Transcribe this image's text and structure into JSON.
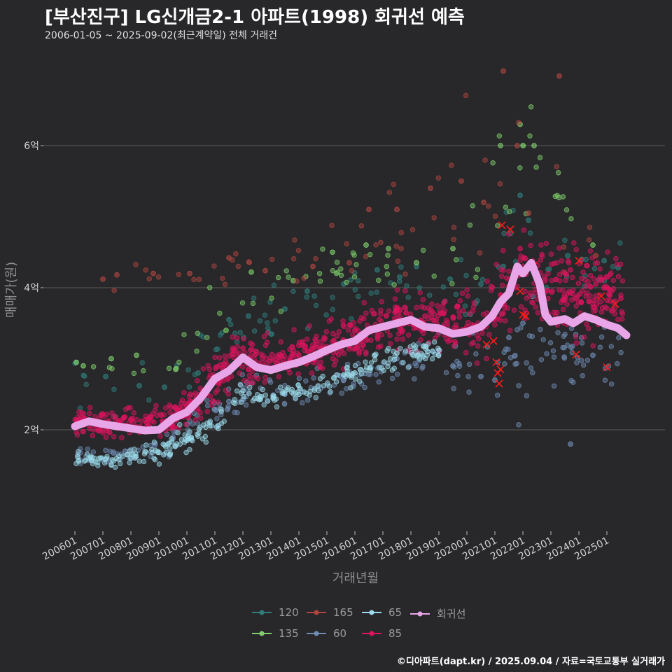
{
  "header": {
    "title": "[부산진구] LG신개금2-1 아파트(1998) 회귀선 예측",
    "subtitle": "2006-01-05 ~ 2025-09-02(최근계약일) 전체 거래건"
  },
  "caption": "©디아파트(dapt.kr) / 2025.09.04 / 자료=국토교통부 실거래가",
  "colors": {
    "background": "#28282b",
    "grid": "#5a5a5a",
    "s120": "#2e7f7c",
    "s135": "#7fd06a",
    "s165": "#b0453f",
    "s60": "#6f8cb4",
    "s65": "#9cdcec",
    "s85": "#e0135f",
    "regression": "#e8a6e8",
    "cancel_mark": "#ff1a1a"
  },
  "chart_data": {
    "type": "scatter",
    "xlabel": "거래년월",
    "ylabel": "매매가(원)",
    "xlim": [
      2006.0,
      2025.75
    ],
    "ylim": [
      1.45,
      7.1
    ],
    "x_ticks": [
      "200601",
      "200701",
      "200801",
      "200901",
      "201001",
      "201101",
      "201201",
      "201301",
      "201401",
      "201501",
      "201601",
      "201701",
      "201801",
      "201901",
      "202001",
      "202101",
      "202201",
      "202301",
      "202401",
      "202501"
    ],
    "y_ticks": [
      2,
      4,
      6
    ],
    "y_tick_labels": [
      "2억",
      "4억",
      "6억"
    ],
    "grid": "horizontal",
    "legend_position": "bottom",
    "legend": [
      "120",
      "135",
      "165",
      "60",
      "65",
      "85",
      "회귀선"
    ],
    "regression_series": {
      "name": "회귀선",
      "points": [
        [
          2006.0,
          2.05
        ],
        [
          2006.5,
          2.12
        ],
        [
          2007.0,
          2.08
        ],
        [
          2007.5,
          2.05
        ],
        [
          2008.0,
          2.02
        ],
        [
          2008.5,
          1.99
        ],
        [
          2009.0,
          2.0
        ],
        [
          2009.5,
          2.16
        ],
        [
          2010.0,
          2.25
        ],
        [
          2010.5,
          2.45
        ],
        [
          2011.0,
          2.72
        ],
        [
          2011.5,
          2.83
        ],
        [
          2012.0,
          3.02
        ],
        [
          2012.5,
          2.88
        ],
        [
          2013.0,
          2.84
        ],
        [
          2013.5,
          2.9
        ],
        [
          2014.0,
          2.95
        ],
        [
          2014.5,
          3.03
        ],
        [
          2015.0,
          3.12
        ],
        [
          2015.5,
          3.2
        ],
        [
          2016.0,
          3.25
        ],
        [
          2016.5,
          3.4
        ],
        [
          2017.0,
          3.45
        ],
        [
          2017.5,
          3.5
        ],
        [
          2018.0,
          3.55
        ],
        [
          2018.5,
          3.45
        ],
        [
          2019.0,
          3.43
        ],
        [
          2019.5,
          3.35
        ],
        [
          2020.0,
          3.38
        ],
        [
          2020.5,
          3.45
        ],
        [
          2020.9,
          3.6
        ],
        [
          2021.2,
          3.8
        ],
        [
          2021.5,
          3.92
        ],
        [
          2021.8,
          4.3
        ],
        [
          2022.0,
          4.2
        ],
        [
          2022.3,
          4.35
        ],
        [
          2022.6,
          4.05
        ],
        [
          2022.8,
          3.62
        ],
        [
          2023.0,
          3.52
        ],
        [
          2023.5,
          3.56
        ],
        [
          2023.8,
          3.5
        ],
        [
          2024.2,
          3.6
        ],
        [
          2024.6,
          3.55
        ],
        [
          2025.0,
          3.48
        ],
        [
          2025.4,
          3.43
        ],
        [
          2025.7,
          3.33
        ]
      ]
    },
    "series": [
      {
        "name": "120",
        "count": 90,
        "points": [
          [
            2006.05,
            2.95
          ],
          [
            2007.1,
            2.75
          ],
          [
            2008.3,
            2.62
          ],
          [
            2009.2,
            2.6
          ],
          [
            2010.4,
            2.8
          ],
          [
            2011.5,
            3.55
          ],
          [
            2012.2,
            3.6
          ],
          [
            2013.5,
            3.7
          ],
          [
            2014.3,
            3.95
          ],
          [
            2015.6,
            4.05
          ],
          [
            2016.8,
            4.25
          ],
          [
            2017.6,
            4.15
          ],
          [
            2018.2,
            4.3
          ],
          [
            2019.4,
            4.12
          ],
          [
            2020.5,
            4.05
          ],
          [
            2021.3,
            4.3
          ],
          [
            2021.9,
            5.3
          ],
          [
            2022.2,
            4.95
          ],
          [
            2023.6,
            4.45
          ],
          [
            2024.1,
            4.4
          ],
          [
            2024.9,
            4.38
          ],
          [
            2025.4,
            4.28
          ]
        ],
        "trend": [
          [
            2006.0,
            2.7,
            0.18
          ],
          [
            2009.0,
            2.68,
            0.18
          ],
          [
            2011.0,
            3.15,
            0.22
          ],
          [
            2013.0,
            3.7,
            0.2
          ],
          [
            2016.0,
            4.0,
            0.18
          ],
          [
            2018.0,
            4.05,
            0.15
          ],
          [
            2020.5,
            4.0,
            0.2
          ],
          [
            2021.8,
            4.45,
            0.5
          ],
          [
            2023.0,
            4.35,
            0.2
          ],
          [
            2025.6,
            4.3,
            0.15
          ]
        ]
      },
      {
        "name": "135",
        "count": 70,
        "points": [
          [
            2006.05,
            2.95
          ],
          [
            2006.3,
            2.9
          ],
          [
            2007.3,
            3.0
          ],
          [
            2008.2,
            3.05
          ],
          [
            2009.6,
            2.85
          ],
          [
            2011.4,
            3.4
          ],
          [
            2012.3,
            4.22
          ],
          [
            2013.8,
            4.1
          ],
          [
            2015.2,
            4.5
          ],
          [
            2016.4,
            4.6
          ],
          [
            2017.2,
            4.55
          ],
          [
            2018.2,
            4.35
          ],
          [
            2019.5,
            4.55
          ],
          [
            2021.2,
            6.0
          ],
          [
            2021.9,
            6.3
          ],
          [
            2022.4,
            6.0
          ],
          [
            2024.5,
            4.6
          ]
        ],
        "trend": [
          [
            2006.0,
            2.9,
            0.12
          ],
          [
            2009.0,
            2.9,
            0.15
          ],
          [
            2011.0,
            3.4,
            0.25
          ],
          [
            2013.0,
            3.95,
            0.25
          ],
          [
            2016.0,
            4.45,
            0.2
          ],
          [
            2018.5,
            4.4,
            0.2
          ],
          [
            2020.5,
            4.4,
            0.3
          ],
          [
            2021.5,
            5.5,
            0.6
          ],
          [
            2022.4,
            5.95,
            0.3
          ],
          [
            2024.5,
            4.6,
            0.2
          ]
        ]
      },
      {
        "name": "165",
        "count": 55,
        "points": [
          [
            2007.0,
            4.12
          ],
          [
            2007.5,
            4.18
          ],
          [
            2008.8,
            4.2
          ],
          [
            2010.1,
            4.2
          ],
          [
            2011.5,
            4.42
          ],
          [
            2012.8,
            4.24
          ],
          [
            2014.5,
            4.3
          ],
          [
            2015.8,
            4.35
          ],
          [
            2016.5,
            5.1
          ],
          [
            2017.5,
            5.1
          ],
          [
            2018.7,
            5.4
          ],
          [
            2019.8,
            5.5
          ],
          [
            2020.6,
            5.2
          ],
          [
            2021.3,
            7.05
          ],
          [
            2021.8,
            6.0
          ],
          [
            2022.2,
            5.05
          ],
          [
            2023.3,
            6.98
          ],
          [
            2024.6,
            4.45
          ]
        ],
        "trend": [
          [
            2007.0,
            4.15,
            0.1
          ],
          [
            2010.0,
            4.2,
            0.12
          ],
          [
            2013.0,
            4.3,
            0.15
          ],
          [
            2016.0,
            4.6,
            0.35
          ],
          [
            2018.5,
            5.0,
            0.35
          ],
          [
            2021.0,
            5.6,
            0.8
          ],
          [
            2022.5,
            5.6,
            0.8
          ],
          [
            2024.5,
            4.6,
            0.3
          ]
        ]
      },
      {
        "name": "60",
        "count": 220,
        "points": [
          [
            2006.1,
            1.65
          ],
          [
            2007.8,
            1.7
          ],
          [
            2009.5,
            1.9
          ],
          [
            2011.5,
            2.4
          ],
          [
            2013.5,
            2.5
          ],
          [
            2015.6,
            2.7
          ],
          [
            2017.5,
            3.0
          ],
          [
            2018.8,
            3.1
          ],
          [
            2019.5,
            2.9
          ],
          [
            2020.5,
            2.75
          ],
          [
            2021.0,
            2.7
          ],
          [
            2021.5,
            3.3
          ],
          [
            2022.0,
            3.5
          ],
          [
            2023.7,
            1.8
          ],
          [
            2024.5,
            3.05
          ]
        ],
        "trend": [
          [
            2006.0,
            1.6,
            0.07
          ],
          [
            2008.0,
            1.65,
            0.07
          ],
          [
            2010.0,
            1.95,
            0.1
          ],
          [
            2012.0,
            2.5,
            0.12
          ],
          [
            2014.0,
            2.55,
            0.12
          ],
          [
            2016.0,
            2.75,
            0.12
          ],
          [
            2018.0,
            3.05,
            0.15
          ],
          [
            2020.0,
            2.85,
            0.2
          ],
          [
            2021.5,
            3.0,
            0.4
          ],
          [
            2022.5,
            3.15,
            0.35
          ],
          [
            2024.0,
            3.05,
            0.22
          ],
          [
            2025.6,
            2.95,
            0.22
          ]
        ]
      },
      {
        "name": "65",
        "count": 260,
        "points": [
          [
            2006.1,
            1.62
          ],
          [
            2008.0,
            1.6
          ],
          [
            2010.0,
            1.85
          ],
          [
            2012.0,
            2.55
          ],
          [
            2014.0,
            2.5
          ],
          [
            2016.0,
            2.8
          ],
          [
            2017.5,
            3.08
          ],
          [
            2018.6,
            3.1
          ],
          [
            2019.0,
            3.12
          ]
        ],
        "trend": [
          [
            2006.0,
            1.58,
            0.05
          ],
          [
            2007.5,
            1.57,
            0.05
          ],
          [
            2009.0,
            1.7,
            0.07
          ],
          [
            2010.5,
            1.95,
            0.1
          ],
          [
            2012.0,
            2.5,
            0.08
          ],
          [
            2013.0,
            2.45,
            0.07
          ],
          [
            2014.5,
            2.58,
            0.08
          ],
          [
            2016.0,
            2.8,
            0.09
          ],
          [
            2017.5,
            3.05,
            0.1
          ],
          [
            2019.0,
            3.12,
            0.08
          ]
        ]
      },
      {
        "name": "85",
        "count": 900,
        "points": [
          [
            2006.1,
            2.1
          ],
          [
            2008.0,
            2.15
          ],
          [
            2010.0,
            2.35
          ],
          [
            2012.0,
            3.15
          ],
          [
            2014.0,
            3.05
          ],
          [
            2016.0,
            3.4
          ],
          [
            2017.5,
            3.7
          ],
          [
            2018.5,
            3.6
          ],
          [
            2020.0,
            3.45
          ],
          [
            2021.2,
            3.9
          ],
          [
            2021.9,
            4.55
          ],
          [
            2023.7,
            4.25
          ],
          [
            2024.6,
            4.05
          ],
          [
            2025.5,
            3.85
          ]
        ],
        "trend": [
          [
            2006.0,
            2.1,
            0.08
          ],
          [
            2008.0,
            2.1,
            0.1
          ],
          [
            2009.5,
            2.15,
            0.1
          ],
          [
            2010.5,
            2.45,
            0.15
          ],
          [
            2011.8,
            3.0,
            0.18
          ],
          [
            2013.0,
            2.95,
            0.15
          ],
          [
            2014.5,
            3.1,
            0.15
          ],
          [
            2016.0,
            3.3,
            0.17
          ],
          [
            2017.5,
            3.55,
            0.2
          ],
          [
            2019.0,
            3.5,
            0.2
          ],
          [
            2020.3,
            3.5,
            0.25
          ],
          [
            2021.3,
            3.95,
            0.3
          ],
          [
            2022.0,
            4.2,
            0.35
          ],
          [
            2023.5,
            4.0,
            0.35
          ],
          [
            2025.6,
            3.9,
            0.25
          ]
        ]
      }
    ],
    "cancelled_marks": [
      [
        2020.7,
        3.2
      ],
      [
        2020.95,
        3.25
      ],
      [
        2021.05,
        2.95
      ],
      [
        2021.1,
        2.8
      ],
      [
        2021.15,
        2.65
      ],
      [
        2021.2,
        2.85
      ],
      [
        2021.25,
        4.88
      ],
      [
        2021.55,
        4.82
      ],
      [
        2021.9,
        3.95
      ],
      [
        2022.0,
        3.62
      ],
      [
        2022.1,
        3.6
      ],
      [
        2022.3,
        4.3
      ],
      [
        2022.4,
        4.32
      ],
      [
        2023.9,
        3.06
      ],
      [
        2024.0,
        4.38
      ],
      [
        2024.8,
        3.88
      ],
      [
        2025.0,
        2.88
      ],
      [
        2025.3,
        3.77
      ]
    ]
  },
  "legend_items": [
    {
      "label": "120",
      "color": "#2e7f7c"
    },
    {
      "label": "165",
      "color": "#b0453f"
    },
    {
      "label": "65",
      "color": "#9cdcec"
    },
    {
      "label": "회귀선",
      "color": "#e8a6e8"
    },
    {
      "label": "135",
      "color": "#7fd06a"
    },
    {
      "label": "60",
      "color": "#6f8cb4"
    },
    {
      "label": "85",
      "color": "#e0135f"
    }
  ]
}
